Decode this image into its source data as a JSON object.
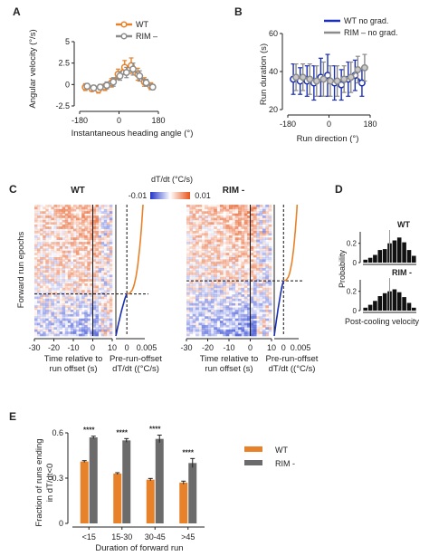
{
  "panel_letters": [
    "A",
    "B",
    "C",
    "D",
    "E"
  ],
  "colors": {
    "wt": "#e8822a",
    "rim": "#8c8c8c",
    "wt_nograd": "#1a2fb4",
    "rim_nograd": "#8c8c8c",
    "heat_pos": "#e8602a",
    "heat_neg": "#3a4fd8"
  },
  "chart_data": [
    {
      "id": "A",
      "type": "line",
      "xlabel": "Instantaneous heading angle (°)",
      "ylabel": "Angular velocity (°/s)",
      "xlim": [
        -180,
        180
      ],
      "ylim": [
        -2.5,
        5
      ],
      "xticks": [
        "-180",
        "0",
        "180"
      ],
      "yticks": [
        "-2.5",
        "0",
        "2.5",
        "5"
      ],
      "x": [
        -150,
        -120,
        -90,
        -60,
        -30,
        0,
        30,
        60,
        90,
        120,
        150
      ],
      "series": [
        {
          "name": "WT",
          "values": [
            -0.3,
            -0.5,
            -0.6,
            -0.3,
            0.2,
            1.2,
            2.0,
            2.2,
            1.2,
            0.3,
            -0.2
          ],
          "err": [
            0.4,
            0.3,
            0.4,
            0.4,
            0.5,
            0.6,
            0.8,
            0.9,
            0.7,
            0.5,
            0.4
          ]
        },
        {
          "name": "RIM –",
          "values": [
            -0.2,
            -0.4,
            -0.3,
            -0.1,
            0.3,
            1.0,
            1.4,
            1.8,
            1.0,
            0.2,
            -0.3
          ],
          "err": [
            0.3,
            0.3,
            0.3,
            0.4,
            0.5,
            0.5,
            0.6,
            0.7,
            0.6,
            0.4,
            0.3
          ]
        }
      ]
    },
    {
      "id": "B",
      "type": "line",
      "xlabel": "Run direction  (°)",
      "ylabel": "Run duration (s)",
      "xlim": [
        -180,
        180
      ],
      "ylim": [
        20,
        60
      ],
      "xticks": [
        "-180",
        "0",
        "180"
      ],
      "yticks": [
        "20",
        "40",
        "60"
      ],
      "x": [
        -150,
        -120,
        -90,
        -60,
        -30,
        0,
        30,
        60,
        90,
        120,
        150
      ],
      "series": [
        {
          "name": "WT no grad.",
          "values": [
            36,
            35,
            35,
            34,
            37,
            38,
            34,
            33,
            36,
            38,
            34
          ],
          "err": [
            8,
            7,
            8,
            9,
            10,
            11,
            9,
            8,
            9,
            8,
            7
          ]
        },
        {
          "name": "RIM –  no grad.",
          "values": [
            37,
            37,
            36,
            35,
            36,
            35,
            35,
            36,
            37,
            41,
            42
          ],
          "err": [
            7,
            7,
            8,
            8,
            9,
            8,
            8,
            7,
            8,
            7,
            7
          ]
        }
      ]
    },
    {
      "id": "C",
      "type": "heatmap",
      "ylabel": "Forward run epochs",
      "colorbar_label": "dT/dt (°C/s)",
      "colorbar_ticks": [
        "-0.01",
        "0.01"
      ],
      "heat_xlabel": "Time relative to\nrun offset (s)",
      "heat_xticks": [
        "-30",
        "-20",
        "-10",
        "0",
        "10"
      ],
      "side_xlabel": "Pre-run-offset\ndT/dt ((°C/s)",
      "side_xticks": [
        "0",
        "0.005"
      ],
      "groups": [
        {
          "name": "WT",
          "threshold_frac": 0.68
        },
        {
          "name": "RIM -",
          "threshold_frac": 0.58
        }
      ]
    },
    {
      "id": "D",
      "type": "bar",
      "xlabel": "Post-cooling velocity",
      "ylabel": "Probability",
      "yticks": [
        "0",
        "0.2"
      ],
      "groups": [
        {
          "name": "WT",
          "values": [
            0.03,
            0.05,
            0.08,
            0.13,
            0.14,
            0.2,
            0.23,
            0.26,
            0.21,
            0.13,
            0.07
          ]
        },
        {
          "name": "RIM -",
          "values": [
            0.03,
            0.06,
            0.1,
            0.15,
            0.18,
            0.2,
            0.22,
            0.19,
            0.14,
            0.08,
            0.03
          ]
        }
      ]
    },
    {
      "id": "E",
      "type": "bar",
      "xlabel": "Duration of forward run",
      "ylabel": "Fraction of runs ending\nin dT/dt<0",
      "ylim": [
        0,
        0.6
      ],
      "yticks": [
        "0",
        "0.3",
        "0.6"
      ],
      "categories": [
        "<15",
        "15-30",
        "30-45",
        ">45"
      ],
      "significance": [
        "****",
        "****",
        "****",
        "****"
      ],
      "series": [
        {
          "name": "WT",
          "values": [
            0.41,
            0.33,
            0.29,
            0.27
          ],
          "err": [
            0.006,
            0.006,
            0.008,
            0.01
          ]
        },
        {
          "name": "RIM -",
          "values": [
            0.57,
            0.55,
            0.56,
            0.4
          ],
          "err": [
            0.008,
            0.012,
            0.025,
            0.03
          ]
        }
      ]
    }
  ]
}
